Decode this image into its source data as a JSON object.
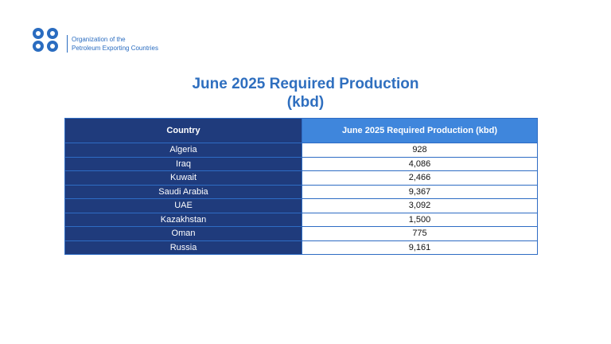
{
  "header": {
    "org_name_lines": [
      "Organization of the",
      "Petroleum Exporting Countries"
    ]
  },
  "title_lines": [
    "June 2025 Required Production",
    "(kbd)"
  ],
  "table": {
    "columns": [
      "Country",
      "June 2025 Required Production (kbd)"
    ],
    "rows": [
      [
        "Algeria",
        "928"
      ],
      [
        "Iraq",
        "4,086"
      ],
      [
        "Kuwait",
        "2,466"
      ],
      [
        "Saudi Arabia",
        "9,367"
      ],
      [
        "UAE",
        "3,092"
      ],
      [
        "Kazakhstan",
        "1,500"
      ],
      [
        "Oman",
        "775"
      ],
      [
        "Russia",
        "9,161"
      ]
    ]
  }
}
